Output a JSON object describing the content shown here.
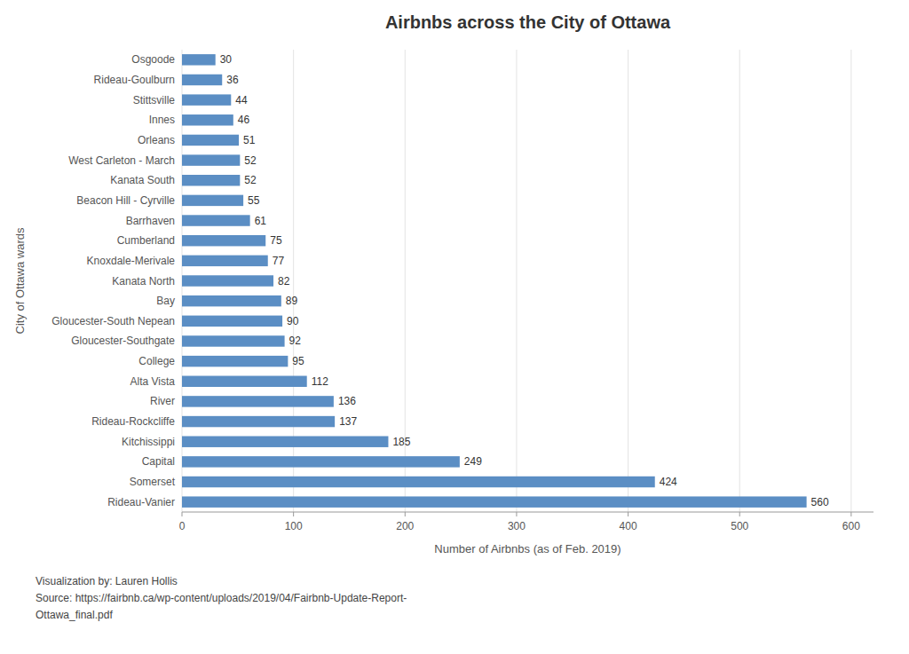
{
  "chart_data": {
    "type": "bar",
    "orientation": "horizontal",
    "title": "Airbnbs across the City of Ottawa",
    "xlabel": "Number of Airbnbs (as of Feb. 2019)",
    "ylabel": "City of Ottawa wards",
    "annotation": "Visualization by: Lauren Hollis\nSource: https://fairbnb.ca/wp-content/uploads/2019/04/Fairbnb-Update-Report-\nOttawa_final.pdf",
    "categories": [
      "Rideau-Vanier",
      "Somerset",
      "Capital",
      "Kitchissippi",
      "Rideau-Rockcliffe",
      "River",
      "Alta Vista",
      "College",
      "Gloucester-Southgate",
      "Gloucester-South Nepean",
      "Bay",
      "Kanata North",
      "Knoxdale-Merivale",
      "Cumberland",
      "Barrhaven",
      "Beacon Hill - Cyrville",
      "Kanata South",
      "West Carleton - March",
      "Orleans",
      "Innes",
      "Stittsville",
      "Rideau-Goulburn",
      "Osgoode"
    ],
    "values": [
      560,
      424,
      249,
      185,
      137,
      136,
      112,
      95,
      92,
      90,
      89,
      82,
      77,
      75,
      61,
      55,
      52,
      52,
      51,
      46,
      44,
      36,
      30
    ],
    "color": "#5b8ec4",
    "xlim": [
      0,
      620
    ],
    "xticks": [
      0,
      100,
      200,
      300,
      400,
      500,
      600
    ],
    "grid": true,
    "data_labels": true
  }
}
